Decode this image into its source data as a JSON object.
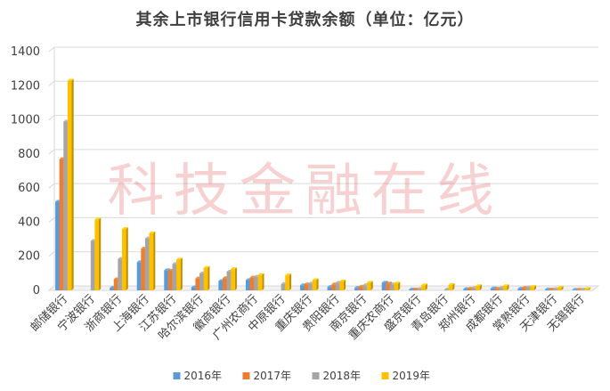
{
  "watermark": "科技金融在线",
  "colors": {
    "2016年": "#5B9BD5",
    "2017年": "#ED7D31",
    "2018年": "#A5A5A5",
    "2019年": "#FFC000"
  },
  "chart_data": {
    "type": "bar",
    "title": "其余上市银行信用卡贷款余额（单位：亿元）",
    "xlabel": "",
    "ylabel": "",
    "ylim": [
      0,
      1400
    ],
    "yticks": [
      0,
      200,
      400,
      600,
      800,
      1000,
      1200,
      1400
    ],
    "grid": true,
    "legend": "bottom",
    "categories": [
      "邮储银行",
      "宁波银行",
      "浙商银行",
      "上海银行",
      "江苏银行",
      "哈尔滨银行",
      "徽商银行",
      "广州农商行",
      "中原银行",
      "重庆银行",
      "贵阳银行",
      "南京银行",
      "重庆农商行",
      "盛京银行",
      "青岛银行",
      "郑州银行",
      "成都银行",
      "常熟银行",
      "天津银行",
      "无锡银行"
    ],
    "series": [
      {
        "name": "2016年",
        "values": [
          520,
          0,
          15,
          165,
          118,
          18,
          55,
          60,
          0,
          30,
          20,
          15,
          45,
          5,
          0,
          8,
          12,
          10,
          5,
          3
        ]
      },
      {
        "name": "2017年",
        "values": [
          770,
          0,
          65,
          245,
          115,
          70,
          72,
          75,
          0,
          35,
          35,
          22,
          40,
          5,
          0,
          10,
          10,
          15,
          5,
          4
        ]
      },
      {
        "name": "2018年",
        "values": [
          990,
          290,
          185,
          305,
          155,
          100,
          110,
          80,
          38,
          40,
          45,
          30,
          35,
          8,
          5,
          15,
          15,
          18,
          8,
          5
        ]
      },
      {
        "name": "2019年",
        "values": [
          1230,
          415,
          360,
          335,
          180,
          132,
          125,
          90,
          88,
          60,
          52,
          45,
          40,
          30,
          32,
          25,
          25,
          20,
          15,
          8
        ]
      }
    ]
  }
}
